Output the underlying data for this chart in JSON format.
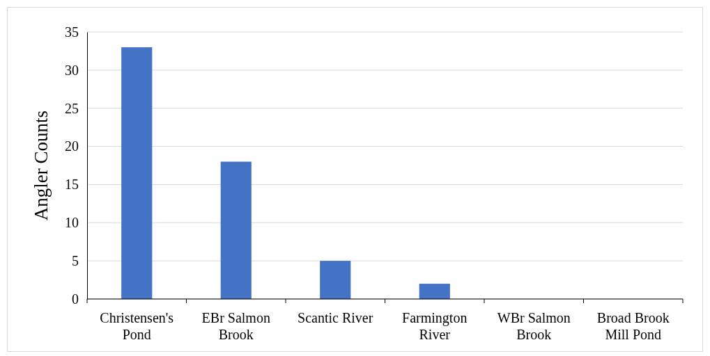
{
  "chart_data": {
    "type": "bar",
    "ylabel": "Angler Counts",
    "categories": [
      "Christensen's Pond",
      "EBr Salmon Brook",
      "Scantic River",
      "Farmington River",
      "WBr Salmon Brook",
      "Broad Brook Mill Pond"
    ],
    "values": [
      33,
      18,
      5,
      2,
      0,
      0
    ],
    "color": "#4472c4",
    "ylim": [
      0,
      35
    ],
    "yticks": [
      0,
      5,
      10,
      15,
      20,
      25,
      30,
      35
    ],
    "grid": "y"
  }
}
